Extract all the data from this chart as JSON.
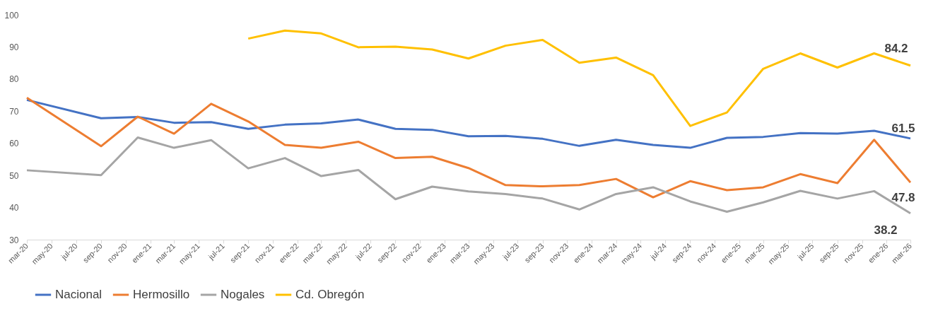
{
  "chart_data": {
    "type": "line",
    "ylim": [
      30,
      100
    ],
    "yticks": [
      30,
      40,
      50,
      60,
      70,
      80,
      90,
      100
    ],
    "xlim": [
      "2020-03",
      "2026-03"
    ],
    "xticks": [
      {
        "value": "2020-03",
        "label": "mar-20"
      },
      {
        "value": "2020-05",
        "label": "may-20"
      },
      {
        "value": "2020-07",
        "label": "jul-20"
      },
      {
        "value": "2020-09",
        "label": "sep-20"
      },
      {
        "value": "2020-11",
        "label": "nov-20"
      },
      {
        "value": "2021-01",
        "label": "ene-21"
      },
      {
        "value": "2021-03",
        "label": "mar-21"
      },
      {
        "value": "2021-05",
        "label": "may-21"
      },
      {
        "value": "2021-07",
        "label": "jul-21"
      },
      {
        "value": "2021-09",
        "label": "sep-21"
      },
      {
        "value": "2021-11",
        "label": "nov-21"
      },
      {
        "value": "2022-01",
        "label": "ene-22"
      },
      {
        "value": "2022-03",
        "label": "mar-22"
      },
      {
        "value": "2022-05",
        "label": "may-22"
      },
      {
        "value": "2022-07",
        "label": "jul-22"
      },
      {
        "value": "2022-09",
        "label": "sep-22"
      },
      {
        "value": "2022-11",
        "label": "nov-22"
      },
      {
        "value": "2023-01",
        "label": "ene-23"
      },
      {
        "value": "2023-03",
        "label": "mar-23"
      },
      {
        "value": "2023-05",
        "label": "may-23"
      },
      {
        "value": "2023-07",
        "label": "jul-23"
      },
      {
        "value": "2023-09",
        "label": "sep-23"
      },
      {
        "value": "2023-11",
        "label": "nov-23"
      },
      {
        "value": "2024-01",
        "label": "ene-24"
      },
      {
        "value": "2024-03",
        "label": "mar-24"
      },
      {
        "value": "2024-05",
        "label": "may-24"
      },
      {
        "value": "2024-07",
        "label": "jul-24"
      },
      {
        "value": "2024-09",
        "label": "sep-24"
      },
      {
        "value": "2024-11",
        "label": "nov-24"
      },
      {
        "value": "2025-01",
        "label": "ene-25"
      },
      {
        "value": "2025-03",
        "label": "mar-25"
      },
      {
        "value": "2025-05",
        "label": "may-25"
      },
      {
        "value": "2025-07",
        "label": "jul-25"
      },
      {
        "value": "2025-09",
        "label": "sep-25"
      },
      {
        "value": "2025-11",
        "label": "nov-25"
      },
      {
        "value": "2026-01",
        "label": "ene-26"
      },
      {
        "value": "2026-03",
        "label": "mar-26"
      }
    ],
    "x": [
      "2020-03",
      "2020-09",
      "2020-12",
      "2021-03",
      "2021-06",
      "2021-09",
      "2021-12",
      "2022-03",
      "2022-06",
      "2022-09",
      "2022-12",
      "2023-03",
      "2023-06",
      "2023-09",
      "2023-12",
      "2024-03",
      "2024-06",
      "2024-09",
      "2024-12",
      "2025-03",
      "2025-06",
      "2025-09",
      "2025-12",
      "2026-03"
    ],
    "grid": false,
    "legend": "bottom",
    "marker": "none",
    "line_style": "solid",
    "series": [
      {
        "name": "Nacional",
        "color": "#4472c4",
        "values": [
          73.5,
          67.8,
          68.2,
          66.4,
          66.6,
          64.5,
          65.8,
          66.2,
          67.4,
          64.5,
          64.2,
          62.2,
          62.3,
          61.4,
          59.2,
          61.1,
          59.5,
          58.6,
          61.7,
          62.0,
          63.2,
          63.0,
          63.9,
          61.5
        ],
        "value_labels": [
          null,
          null,
          null,
          null,
          null,
          null,
          null,
          null,
          null,
          null,
          null,
          null,
          null,
          null,
          null,
          null,
          null,
          null,
          null,
          null,
          null,
          null,
          null,
          "61.5"
        ]
      },
      {
        "name": "Hermosillo",
        "color": "#ed7d31",
        "values": [
          74.2,
          59.1,
          68.3,
          63.0,
          72.3,
          66.8,
          59.5,
          58.6,
          60.5,
          55.4,
          55.8,
          52.3,
          47.0,
          46.6,
          47.0,
          48.9,
          43.2,
          48.2,
          45.4,
          46.3,
          50.4,
          47.6,
          61.1,
          47.8
        ],
        "value_labels": [
          null,
          null,
          null,
          null,
          null,
          null,
          null,
          null,
          null,
          null,
          null,
          null,
          null,
          null,
          null,
          null,
          null,
          null,
          null,
          null,
          null,
          null,
          null,
          "47.8"
        ]
      },
      {
        "name": "Nogales",
        "color": "#a5a5a5",
        "values": [
          51.6,
          50.1,
          61.8,
          58.6,
          61.0,
          52.2,
          55.4,
          49.8,
          51.7,
          42.6,
          46.5,
          45.0,
          44.2,
          42.8,
          39.4,
          44.2,
          46.3,
          41.9,
          38.7,
          41.6,
          45.2,
          42.8,
          45.1,
          38.2
        ],
        "value_labels": [
          null,
          null,
          null,
          null,
          null,
          null,
          null,
          null,
          null,
          null,
          null,
          null,
          null,
          null,
          null,
          null,
          null,
          null,
          null,
          null,
          null,
          null,
          null,
          "38.2"
        ]
      },
      {
        "name": "Cd. Obregón",
        "color": "#ffc000",
        "values": [
          null,
          null,
          null,
          null,
          null,
          92.6,
          95.1,
          94.2,
          89.9,
          90.1,
          89.2,
          86.4,
          90.4,
          92.2,
          85.1,
          86.7,
          81.2,
          65.4,
          69.6,
          83.2,
          88.0,
          83.6,
          88.0,
          84.2
        ],
        "value_labels": [
          null,
          null,
          null,
          null,
          null,
          null,
          null,
          null,
          null,
          null,
          null,
          null,
          null,
          null,
          null,
          null,
          null,
          null,
          null,
          null,
          null,
          null,
          null,
          "84.2"
        ]
      }
    ]
  }
}
